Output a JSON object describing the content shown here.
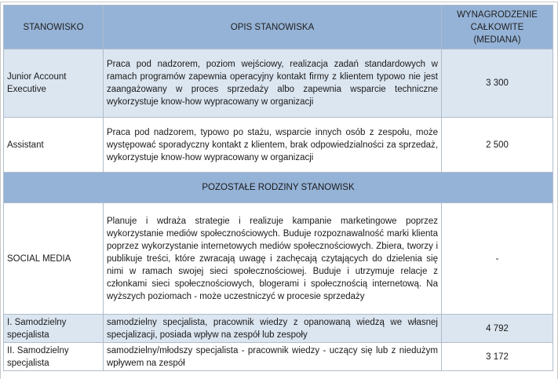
{
  "header": {
    "col1": "STANOWISKO",
    "col2": "OPIS STANOWISKA",
    "col3_line1": "WYNAGRODZENIE",
    "col3_line2": "CAŁKOWITE",
    "col3_line3": "(MEDIANA)"
  },
  "rows": [
    {
      "title": "Junior Account Executive",
      "description": "Praca pod nadzorem, poziom wejściowy, realizacja zadań standardowych w ramach programów zapewnia operacyjny kontakt firmy z klientem typowo nie jest zaangażowany w proces sprzedaży albo zapewnia wsparcie techniczne wykorzystuje know-how wypracowany w organizacji",
      "salary": "3 300"
    },
    {
      "title": "Assistant",
      "description": "Praca pod nadzorem, typowo po stażu, wsparcie innych osób z zespołu, może występować sporadyczny kontakt z klientem, brak odpowiedzialności za sprzedaż, wykorzystuje know-how wypracowany w organizacji",
      "salary": "2 500"
    }
  ],
  "section_title": "POZOSTAŁE RODZINY STANOWISK",
  "rows2": [
    {
      "title": "SOCIAL MEDIA",
      "description": "Planuje i wdraża strategie i realizuje kampanie marketingowe poprzez wykorzystanie mediów społecznościowych. Buduje rozpoznawalność marki klienta poprzez wykorzystanie internetowych mediów społecznościowych. Zbiera, tworzy i publikuje treści, które zwracają uwagę i zachęcają czytających do dzielenia się nimi w ramach swojej sieci społecznościowej. Buduje i utrzymuje relacje z członkami sieci społecznościowych, blogerami i społecznością internetową. Na wyższych poziomach - może uczestniczyć w procesie sprzedaży",
      "salary": "-"
    },
    {
      "title": "I. Samodzielny specjalista",
      "description": "samodzielny specjalista, pracownik wiedzy z opanowaną wiedzą we własnej specjalizacji, posiada wpływ na zespół lub zespoły",
      "salary": "4 792"
    },
    {
      "title": "II. Samodzielny specjalista",
      "description": "samodzielny/młodszy specjalista - pracownik wiedzy - uczący się lub z niedużym wpływem na zespół",
      "salary": "3 172"
    }
  ]
}
